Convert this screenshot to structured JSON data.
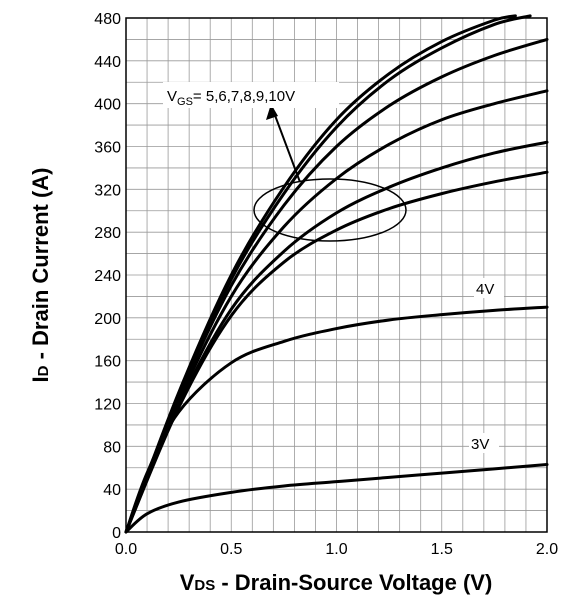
{
  "chart_data": {
    "type": "line",
    "title": "",
    "xlabel": {
      "main": "V",
      "sub": "DS",
      "rest": " - Drain-Source Voltage (V)"
    },
    "ylabel": {
      "main": "I",
      "sub": "D",
      "rest": " - Drain Current (A)"
    },
    "xlim": [
      0,
      2
    ],
    "ylim": [
      0,
      480
    ],
    "grid": true,
    "x_ticks": [
      0,
      0.5,
      1,
      1.5,
      2
    ],
    "x_tick_labels": [
      "0.0",
      "0.5",
      "1.0",
      "1.5",
      "2.0"
    ],
    "y_ticks": [
      0,
      40,
      80,
      120,
      160,
      200,
      240,
      280,
      320,
      360,
      400,
      440,
      480
    ],
    "y_tick_labels": [
      "0",
      "40",
      "80",
      "120",
      "160",
      "200",
      "240",
      "280",
      "320",
      "360",
      "400",
      "440",
      "480"
    ],
    "series": [
      {
        "name": "VGS=10V",
        "x": [
          0,
          0.25,
          0.5,
          0.75,
          1.0,
          1.25,
          1.5,
          1.75,
          1.85
        ],
        "y": [
          0,
          130,
          240,
          322,
          385,
          428,
          458,
          478,
          482
        ]
      },
      {
        "name": "VGS=9V",
        "x": [
          0,
          0.25,
          0.5,
          0.75,
          1.0,
          1.25,
          1.5,
          1.75,
          1.92
        ],
        "y": [
          0,
          128,
          236,
          316,
          378,
          422,
          452,
          474,
          482
        ]
      },
      {
        "name": "VGS=8V",
        "x": [
          0,
          0.25,
          0.5,
          0.75,
          1.0,
          1.25,
          1.5,
          1.75,
          2.0
        ],
        "y": [
          0,
          126,
          230,
          305,
          360,
          398,
          425,
          445,
          460
        ]
      },
      {
        "name": "VGS=7V",
        "x": [
          0,
          0.25,
          0.5,
          0.75,
          1.0,
          1.25,
          1.5,
          1.75,
          2.0
        ],
        "y": [
          0,
          122,
          220,
          285,
          330,
          362,
          385,
          400,
          412
        ]
      },
      {
        "name": "VGS=6V",
        "x": [
          0,
          0.25,
          0.5,
          0.75,
          1.0,
          1.25,
          1.5,
          1.75,
          2.0
        ],
        "y": [
          0,
          118,
          208,
          262,
          298,
          322,
          340,
          354,
          364
        ]
      },
      {
        "name": "VGS=5V",
        "x": [
          0,
          0.25,
          0.5,
          0.75,
          1.0,
          1.25,
          1.5,
          1.75,
          2.0
        ],
        "y": [
          0,
          116,
          202,
          252,
          282,
          302,
          316,
          327,
          336
        ]
      },
      {
        "name": "VGS=4V",
        "x": [
          0,
          0.1,
          0.25,
          0.5,
          0.75,
          1.0,
          1.25,
          1.5,
          1.75,
          2.0
        ],
        "y": [
          0,
          55,
          112,
          158,
          178,
          190,
          198,
          203,
          207,
          210
        ]
      },
      {
        "name": "VGS=3V",
        "x": [
          0,
          0.1,
          0.25,
          0.5,
          0.75,
          1.0,
          1.25,
          1.5,
          1.75,
          2.0
        ],
        "y": [
          0,
          17,
          28,
          37,
          43,
          47,
          51,
          55,
          59,
          63
        ]
      }
    ],
    "annotations": {
      "group_label": {
        "main": "V",
        "sub": "GS",
        "rest": "= 5,6,7,8,9,10V"
      },
      "label_4v": "4V",
      "label_3v": "3V"
    }
  }
}
